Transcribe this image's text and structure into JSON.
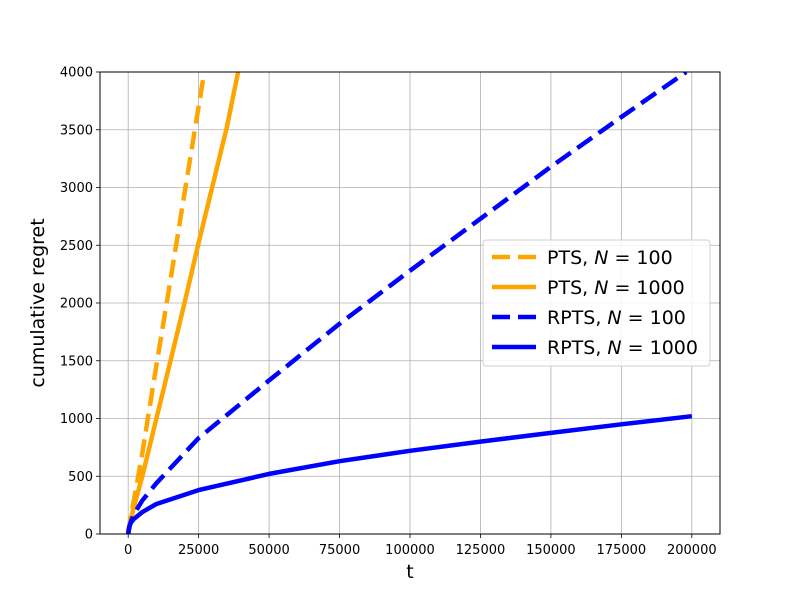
{
  "chart_data": {
    "type": "line",
    "xlabel": "t",
    "ylabel": "cumulative regret",
    "xlim": [
      -10000,
      210000
    ],
    "ylim": [
      0,
      4000
    ],
    "xticks": [
      0,
      25000,
      50000,
      75000,
      100000,
      125000,
      150000,
      175000,
      200000
    ],
    "yticks": [
      0,
      500,
      1000,
      1500,
      2000,
      2500,
      3000,
      3500,
      4000
    ],
    "grid": true,
    "legend_position": "center-right",
    "series": [
      {
        "name": "PTS, N = 100",
        "name_prefix": "PTS, ",
        "name_var": "N",
        "name_suffix": " = 100",
        "color": "#ffa500",
        "style": "dashed",
        "x": [
          0,
          200,
          500,
          1000,
          2000,
          3000,
          5000,
          7500,
          10000,
          15000,
          20000,
          25000,
          27000
        ],
        "y": [
          0,
          45,
          90,
          160,
          290,
          420,
          700,
          1080,
          1460,
          2200,
          2950,
          3700,
          4000
        ]
      },
      {
        "name": "PTS, N = 1000",
        "name_prefix": "PTS, ",
        "name_var": "N",
        "name_suffix": " = 1000",
        "color": "#ffa500",
        "style": "solid",
        "x": [
          0,
          200,
          500,
          1000,
          2000,
          3000,
          5000,
          10000,
          15000,
          20000,
          25000,
          30000,
          35000,
          39000
        ],
        "y": [
          0,
          40,
          80,
          135,
          230,
          320,
          500,
          1000,
          1500,
          2000,
          2520,
          3020,
          3520,
          4000
        ]
      },
      {
        "name": "RPTS, N = 100",
        "name_prefix": "RPTS, ",
        "name_var": "N",
        "name_suffix": " = 100",
        "color": "#0000ff",
        "style": "dashed",
        "x": [
          0,
          500,
          1000,
          2000,
          5000,
          10000,
          25000,
          50000,
          75000,
          100000,
          125000,
          150000,
          175000,
          198000
        ],
        "y": [
          0,
          70,
          110,
          170,
          290,
          440,
          830,
          1330,
          1820,
          2280,
          2730,
          3180,
          3610,
          4000
        ]
      },
      {
        "name": "RPTS, N = 1000",
        "name_prefix": "RPTS, ",
        "name_var": "N",
        "name_suffix": " = 1000",
        "color": "#0000ff",
        "style": "solid",
        "x": [
          0,
          200,
          500,
          1000,
          2000,
          5000,
          10000,
          15000,
          25000,
          50000,
          75000,
          100000,
          125000,
          150000,
          175000,
          200000
        ],
        "y": [
          0,
          40,
          70,
          100,
          130,
          190,
          260,
          300,
          380,
          520,
          630,
          720,
          800,
          875,
          950,
          1020
        ]
      }
    ]
  }
}
